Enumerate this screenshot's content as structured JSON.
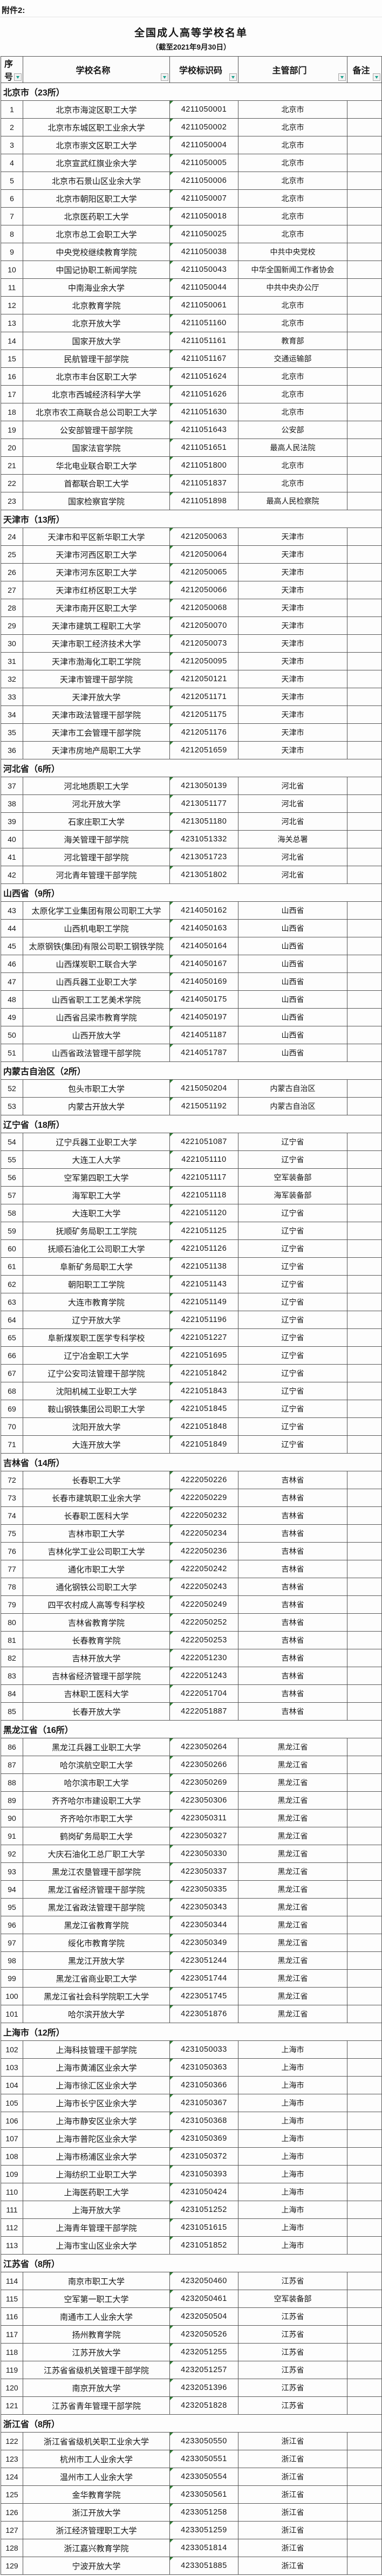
{
  "page": {
    "attachment_label": "附件2:",
    "title": "全国成人高等学校名单",
    "subtitle": "（截至2021年9月30日）"
  },
  "colors": {
    "filter_arrow": "#17a08c",
    "code_flag": "#2e7d32",
    "grid_line": "#575757",
    "text": "#161616"
  },
  "table": {
    "columns": [
      {
        "key": "no",
        "label": "序号"
      },
      {
        "key": "school",
        "label": "学校名称"
      },
      {
        "key": "code",
        "label": "学校标识码"
      },
      {
        "key": "dept",
        "label": "主管部门"
      },
      {
        "key": "note",
        "label": "备注"
      }
    ],
    "sections": [
      {
        "name": "北京市（23所）",
        "rows": [
          [
            "1",
            "北京市海淀区职工大学",
            "4211050001",
            "北京市",
            ""
          ],
          [
            "2",
            "北京市东城区职工业余大学",
            "4211050002",
            "北京市",
            ""
          ],
          [
            "3",
            "北京市崇文区职工大学",
            "4211050004",
            "北京市",
            ""
          ],
          [
            "4",
            "北京宣武红旗业余大学",
            "4211050005",
            "北京市",
            ""
          ],
          [
            "5",
            "北京市石景山区业余大学",
            "4211050006",
            "北京市",
            ""
          ],
          [
            "6",
            "北京市朝阳区职工大学",
            "4211050007",
            "北京市",
            ""
          ],
          [
            "7",
            "北京医药职工大学",
            "4211050018",
            "北京市",
            ""
          ],
          [
            "8",
            "北京市总工会职工大学",
            "4211050025",
            "北京市",
            ""
          ],
          [
            "9",
            "中央党校继续教育学院",
            "4211050038",
            "中共中央党校",
            ""
          ],
          [
            "10",
            "中国记协职工新闻学院",
            "4211050043",
            "中华全国新闻工作者协会",
            ""
          ],
          [
            "11",
            "中南海业余大学",
            "4211050044",
            "中共中央办公厅",
            ""
          ],
          [
            "12",
            "北京教育学院",
            "4211050061",
            "北京市",
            ""
          ],
          [
            "13",
            "北京开放大学",
            "4211051160",
            "北京市",
            ""
          ],
          [
            "14",
            "国家开放大学",
            "4211051161",
            "教育部",
            ""
          ],
          [
            "15",
            "民航管理干部学院",
            "4211051167",
            "交通运输部",
            ""
          ],
          [
            "16",
            "北京市丰台区职工大学",
            "4211051624",
            "北京市",
            ""
          ],
          [
            "17",
            "北京市西城经济科学大学",
            "4211051626",
            "北京市",
            ""
          ],
          [
            "18",
            "北京市农工商联合总公司职工大学",
            "4211051630",
            "北京市",
            ""
          ],
          [
            "19",
            "公安部管理干部学院",
            "4211051643",
            "公安部",
            ""
          ],
          [
            "20",
            "国家法官学院",
            "4211051651",
            "最高人民法院",
            ""
          ],
          [
            "21",
            "华北电业联合职工大学",
            "4211051800",
            "北京市",
            ""
          ],
          [
            "22",
            "首都联合职工大学",
            "4211051837",
            "北京市",
            ""
          ],
          [
            "23",
            "国家检察官学院",
            "4211051898",
            "最高人民检察院",
            ""
          ]
        ]
      },
      {
        "name": "天津市（13所）",
        "rows": [
          [
            "24",
            "天津市和平区新华职工大学",
            "4212050063",
            "天津市",
            ""
          ],
          [
            "25",
            "天津市河西区职工大学",
            "4212050064",
            "天津市",
            ""
          ],
          [
            "26",
            "天津市河东区职工大学",
            "4212050065",
            "天津市",
            ""
          ],
          [
            "27",
            "天津市红桥区职工大学",
            "4212050066",
            "天津市",
            ""
          ],
          [
            "28",
            "天津市南开区职工大学",
            "4212050068",
            "天津市",
            ""
          ],
          [
            "29",
            "天津市建筑工程职工大学",
            "4212050070",
            "天津市",
            ""
          ],
          [
            "30",
            "天津市职工经济技术大学",
            "4212050073",
            "天津市",
            ""
          ],
          [
            "31",
            "天津市渤海化工职工学院",
            "4212050095",
            "天津市",
            ""
          ],
          [
            "32",
            "天津市管理干部学院",
            "4212050121",
            "天津市",
            ""
          ],
          [
            "33",
            "天津开放大学",
            "4212051171",
            "天津市",
            ""
          ],
          [
            "34",
            "天津市政法管理干部学院",
            "4212051175",
            "天津市",
            ""
          ],
          [
            "35",
            "天津市工会管理干部学院",
            "4212051176",
            "天津市",
            ""
          ],
          [
            "36",
            "天津市房地产局职工大学",
            "4212051659",
            "天津市",
            ""
          ]
        ]
      },
      {
        "name": "河北省（6所）",
        "rows": [
          [
            "37",
            "河北地质职工大学",
            "4213050139",
            "河北省",
            ""
          ],
          [
            "38",
            "河北开放大学",
            "4213051177",
            "河北省",
            ""
          ],
          [
            "39",
            "石家庄职工大学",
            "4213051180",
            "河北省",
            ""
          ],
          [
            "40",
            "海关管理干部学院",
            "4231051332",
            "海关总署",
            ""
          ],
          [
            "41",
            "河北管理干部学院",
            "4213051723",
            "河北省",
            ""
          ],
          [
            "42",
            "河北青年管理干部学院",
            "4213051802",
            "河北省",
            ""
          ]
        ]
      },
      {
        "name": "山西省（9所）",
        "rows": [
          [
            "43",
            "太原化学工业集团有限公司职工大学",
            "4214050162",
            "山西省",
            ""
          ],
          [
            "44",
            "山西机电职工学院",
            "4214050163",
            "山西省",
            ""
          ],
          [
            "45",
            "太原钢铁(集团)有限公司职工钢铁学院",
            "4214050164",
            "山西省",
            ""
          ],
          [
            "46",
            "山西煤炭职工联合大学",
            "4214050167",
            "山西省",
            ""
          ],
          [
            "47",
            "山西兵器工业职工大学",
            "4214050169",
            "山西省",
            ""
          ],
          [
            "48",
            "山西省职工工艺美术学院",
            "4214050175",
            "山西省",
            ""
          ],
          [
            "49",
            "山西省吕梁市教育学院",
            "4214050197",
            "山西省",
            ""
          ],
          [
            "50",
            "山西开放大学",
            "4214051187",
            "山西省",
            ""
          ],
          [
            "51",
            "山西省政法管理干部学院",
            "4214051787",
            "山西省",
            ""
          ]
        ]
      },
      {
        "name": "内蒙古自治区（2所）",
        "rows": [
          [
            "52",
            "包头市职工大学",
            "4215050204",
            "内蒙古自治区",
            ""
          ],
          [
            "53",
            "内蒙古开放大学",
            "4215051192",
            "内蒙古自治区",
            ""
          ]
        ]
      },
      {
        "name": "辽宁省（18所）",
        "rows": [
          [
            "54",
            "辽宁兵器工业职工大学",
            "4221051087",
            "辽宁省",
            ""
          ],
          [
            "55",
            "大连工人大学",
            "4221051110",
            "辽宁省",
            ""
          ],
          [
            "56",
            "空军第四职工大学",
            "4221051117",
            "空军装备部",
            ""
          ],
          [
            "57",
            "海军职工大学",
            "4221051118",
            "海军装备部",
            ""
          ],
          [
            "58",
            "大连职工大学",
            "4221051120",
            "辽宁省",
            ""
          ],
          [
            "59",
            "抚顺矿务局职工工学院",
            "4221051125",
            "辽宁省",
            ""
          ],
          [
            "60",
            "抚顺石油化工公司职工大学",
            "4221051126",
            "辽宁省",
            ""
          ],
          [
            "61",
            "阜新矿务局职工大学",
            "4221051138",
            "辽宁省",
            ""
          ],
          [
            "62",
            "朝阳职工工学院",
            "4221051143",
            "辽宁省",
            ""
          ],
          [
            "63",
            "大连市教育学院",
            "4221051149",
            "辽宁省",
            ""
          ],
          [
            "64",
            "辽宁开放大学",
            "4221051196",
            "辽宁省",
            ""
          ],
          [
            "65",
            "阜新煤炭职工医学专科学校",
            "4221051227",
            "辽宁省",
            ""
          ],
          [
            "66",
            "辽宁冶金职工大学",
            "4221051695",
            "辽宁省",
            ""
          ],
          [
            "67",
            "辽宁公安司法管理干部学院",
            "4221051842",
            "辽宁省",
            ""
          ],
          [
            "68",
            "沈阳机械工业职工大学",
            "4221051843",
            "辽宁省",
            ""
          ],
          [
            "69",
            "鞍山钢铁集团公司职工大学",
            "4221051845",
            "辽宁省",
            ""
          ],
          [
            "70",
            "沈阳开放大学",
            "4221051848",
            "辽宁省",
            ""
          ],
          [
            "71",
            "大连开放大学",
            "4221051849",
            "辽宁省",
            ""
          ]
        ]
      },
      {
        "name": "吉林省（14所）",
        "rows": [
          [
            "72",
            "长春职工大学",
            "4222050226",
            "吉林省",
            ""
          ],
          [
            "73",
            "长春市建筑职工业余大学",
            "4222050229",
            "吉林省",
            ""
          ],
          [
            "74",
            "长春职工医科大学",
            "4222050232",
            "吉林省",
            ""
          ],
          [
            "75",
            "吉林市职工大学",
            "4222050234",
            "吉林省",
            ""
          ],
          [
            "76",
            "吉林化学工业公司职工大学",
            "4222050236",
            "吉林省",
            ""
          ],
          [
            "77",
            "通化市职工大学",
            "4222050242",
            "吉林省",
            ""
          ],
          [
            "78",
            "通化钢铁公司职工大学",
            "4222050243",
            "吉林省",
            ""
          ],
          [
            "79",
            "四平农村成人高等专科学校",
            "4222050249",
            "吉林省",
            ""
          ],
          [
            "80",
            "吉林省教育学院",
            "4222050252",
            "吉林省",
            ""
          ],
          [
            "81",
            "长春教育学院",
            "4222050253",
            "吉林省",
            ""
          ],
          [
            "82",
            "吉林开放大学",
            "4222051230",
            "吉林省",
            ""
          ],
          [
            "83",
            "吉林省经济管理干部学院",
            "4222051243",
            "吉林省",
            ""
          ],
          [
            "84",
            "吉林职工医科大学",
            "4222051704",
            "吉林省",
            ""
          ],
          [
            "85",
            "长春开放大学",
            "4222051887",
            "吉林省",
            ""
          ]
        ]
      },
      {
        "name": "黑龙江省（16所）",
        "rows": [
          [
            "86",
            "黑龙江兵器工业职工大学",
            "4223050264",
            "黑龙江省",
            ""
          ],
          [
            "87",
            "哈尔滨航空职工大学",
            "4223050266",
            "黑龙江省",
            ""
          ],
          [
            "88",
            "哈尔滨市职工大学",
            "4223050269",
            "黑龙江省",
            ""
          ],
          [
            "89",
            "齐齐哈尔市建设职工大学",
            "4223050306",
            "黑龙江省",
            ""
          ],
          [
            "90",
            "齐齐哈尔市职工大学",
            "4223050311",
            "黑龙江省",
            ""
          ],
          [
            "91",
            "鹤岗矿务局职工大学",
            "4223050327",
            "黑龙江省",
            ""
          ],
          [
            "92",
            "大庆石油化工总厂职工大学",
            "4223050330",
            "黑龙江省",
            ""
          ],
          [
            "93",
            "黑龙江农垦管理干部学院",
            "4223050337",
            "黑龙江省",
            ""
          ],
          [
            "94",
            "黑龙江省经济管理干部学院",
            "4223050335",
            "黑龙江省",
            ""
          ],
          [
            "95",
            "黑龙江省政法管理干部学院",
            "4223050343",
            "黑龙江省",
            ""
          ],
          [
            "96",
            "黑龙江省教育学院",
            "4223050344",
            "黑龙江省",
            ""
          ],
          [
            "97",
            "绥化市教育学院",
            "4223050349",
            "黑龙江省",
            ""
          ],
          [
            "98",
            "黑龙江开放大学",
            "4223051244",
            "黑龙江省",
            ""
          ],
          [
            "99",
            "黑龙江省商业职工大学",
            "4223051744",
            "黑龙江省",
            ""
          ],
          [
            "100",
            "黑龙江省社会科学院职工大学",
            "4223051745",
            "黑龙江省",
            ""
          ],
          [
            "101",
            "哈尔滨开放大学",
            "4223051876",
            "黑龙江省",
            ""
          ]
        ]
      },
      {
        "name": "上海市（12所）",
        "rows": [
          [
            "102",
            "上海科技管理干部学院",
            "4231050033",
            "上海市",
            ""
          ],
          [
            "103",
            "上海市黄浦区业余大学",
            "4231050363",
            "上海市",
            ""
          ],
          [
            "104",
            "上海市徐汇区业余大学",
            "4231050366",
            "上海市",
            ""
          ],
          [
            "105",
            "上海市长宁区业余大学",
            "4231050367",
            "上海市",
            ""
          ],
          [
            "106",
            "上海市静安区业余大学",
            "4231050368",
            "上海市",
            ""
          ],
          [
            "107",
            "上海市普陀区业余大学",
            "4231050369",
            "上海市",
            ""
          ],
          [
            "108",
            "上海市杨浦区业余大学",
            "4231050372",
            "上海市",
            ""
          ],
          [
            "109",
            "上海纺织工业职工大学",
            "4231050393",
            "上海市",
            ""
          ],
          [
            "110",
            "上海医药职工大学",
            "4231050424",
            "上海市",
            ""
          ],
          [
            "111",
            "上海开放大学",
            "4231051252",
            "上海市",
            ""
          ],
          [
            "112",
            "上海青年管理干部学院",
            "4231051615",
            "上海市",
            ""
          ],
          [
            "113",
            "上海市宝山区业余大学",
            "4231051852",
            "上海市",
            ""
          ]
        ]
      },
      {
        "name": "江苏省（8所）",
        "rows": [
          [
            "114",
            "南京市职工大学",
            "4232050460",
            "江苏省",
            ""
          ],
          [
            "115",
            "空军第一职工大学",
            "4232050461",
            "空军装备部",
            ""
          ],
          [
            "116",
            "南通市工人业余大学",
            "4232050504",
            "江苏省",
            ""
          ],
          [
            "117",
            "扬州教育学院",
            "4232050526",
            "江苏省",
            ""
          ],
          [
            "118",
            "江苏开放大学",
            "4232051255",
            "江苏省",
            ""
          ],
          [
            "119",
            "江苏省省级机关管理干部学院",
            "4232051257",
            "江苏省",
            ""
          ],
          [
            "120",
            "南京开放大学",
            "4232051396",
            "江苏省",
            ""
          ],
          [
            "121",
            "江苏省青年管理干部学院",
            "4232051828",
            "江苏省",
            ""
          ]
        ]
      },
      {
        "name": "浙江省（8所）",
        "rows": [
          [
            "122",
            "浙江省省级机关职工业余大学",
            "4233050550",
            "浙江省",
            ""
          ],
          [
            "123",
            "杭州市工人业余大学",
            "4233050551",
            "浙江省",
            ""
          ],
          [
            "124",
            "温州市工人业余大学",
            "4233050554",
            "浙江省",
            ""
          ],
          [
            "125",
            "金华教育学院",
            "4233050561",
            "浙江省",
            ""
          ],
          [
            "126",
            "浙江开放大学",
            "4233051258",
            "浙江省",
            ""
          ],
          [
            "127",
            "浙江经济管理职工大学",
            "4233051259",
            "浙江省",
            ""
          ],
          [
            "128",
            "浙江嘉兴教育学院",
            "4233051814",
            "浙江省",
            ""
          ],
          [
            "129",
            "宁波开放大学",
            "4233051885",
            "浙江省",
            ""
          ]
        ]
      }
    ]
  }
}
